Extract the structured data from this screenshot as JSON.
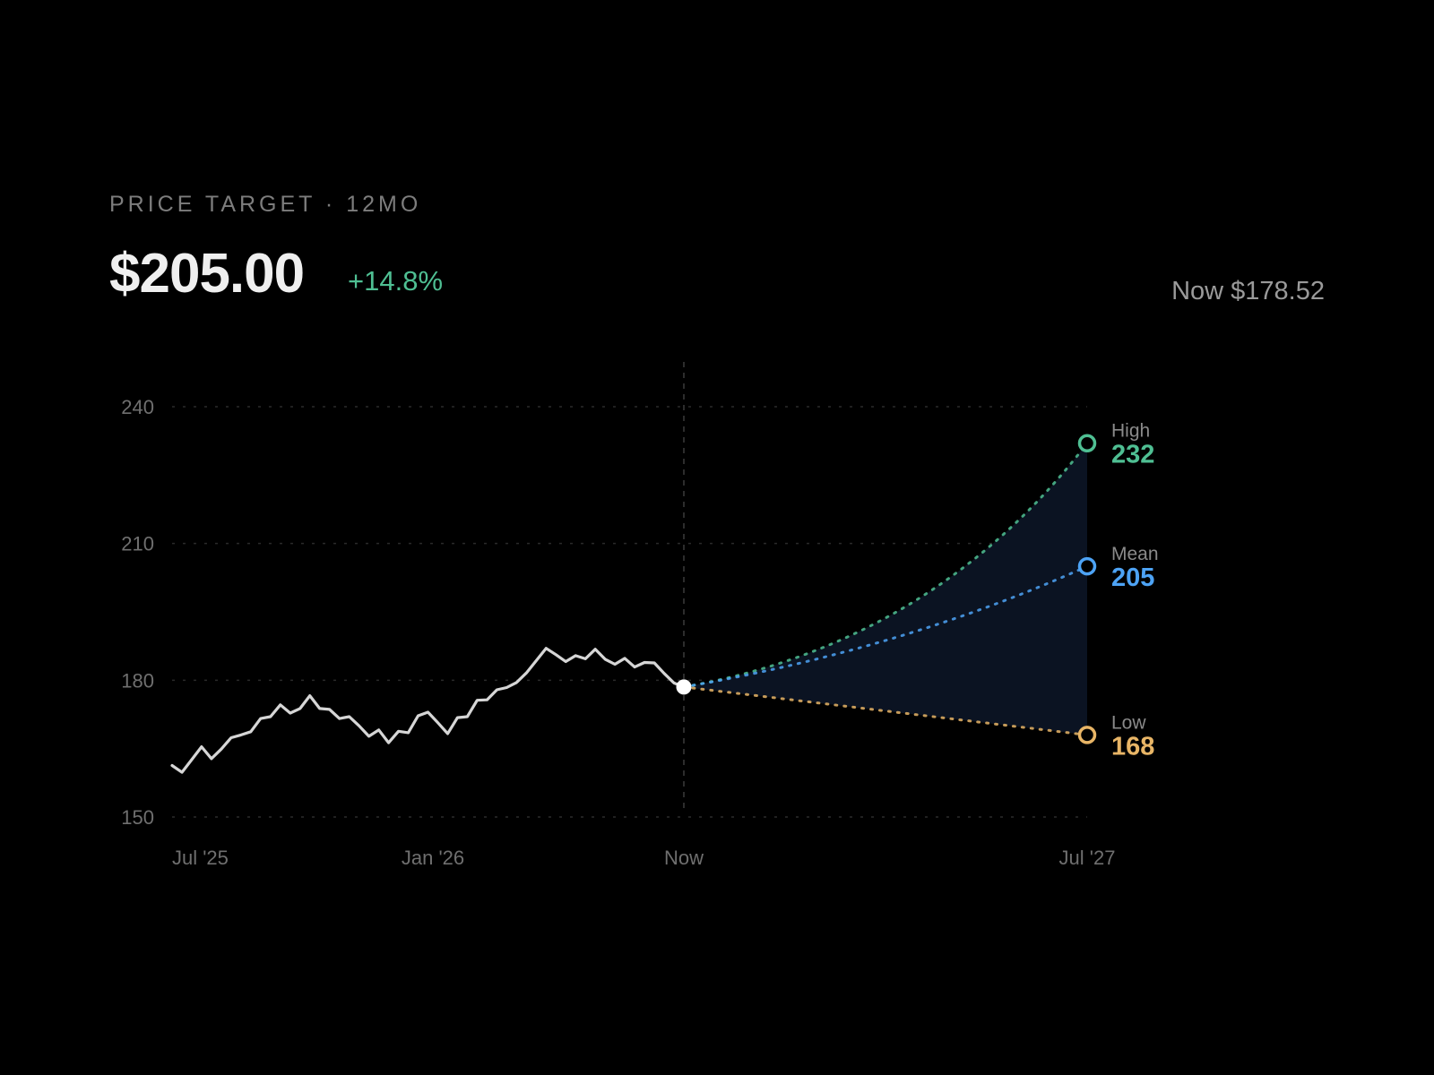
{
  "header": {
    "kicker": "PRICE TARGET · 12MO",
    "price": "$205.00",
    "change": "+14.8%",
    "now_label": "Now $178.52"
  },
  "colors": {
    "background": "#000000",
    "history_line": "#d6d6d6",
    "high": "#4fbf93",
    "mean": "#4da3f5",
    "low": "#e8b566",
    "cone_fill": "#0b1322",
    "grid": "#2a2a2a",
    "axis_text": "#6f6f6f"
  },
  "chart_data": {
    "type": "line",
    "title": "",
    "xlabel": "",
    "ylabel": "",
    "ylim": [
      150,
      240
    ],
    "yticks": [
      240,
      210,
      180,
      150
    ],
    "x_ticks": [
      "Jul '25",
      "Jan '26",
      "Now",
      "Jul '27"
    ],
    "grid": true,
    "now_marker_label": "Now",
    "history": {
      "name": "",
      "start": "Jul '25",
      "end": "Now",
      "values": [
        161.3,
        159.8,
        162.6,
        165.4,
        162.8,
        164.9,
        167.4,
        168.0,
        168.7,
        171.6,
        172.0,
        174.6,
        172.8,
        173.8,
        176.6,
        173.8,
        173.6,
        171.6,
        172.0,
        170.0,
        167.7,
        169.1,
        166.3,
        168.8,
        168.5,
        172.2,
        173.0,
        170.7,
        168.3,
        171.8,
        172.0,
        175.6,
        175.7,
        177.9,
        178.4,
        179.5,
        181.6,
        184.3,
        187.0,
        185.6,
        184.1,
        185.4,
        184.7,
        186.8,
        184.6,
        183.5,
        184.8,
        182.9,
        183.9,
        183.8,
        181.5,
        179.4,
        178.52
      ]
    },
    "current": {
      "label": "Now",
      "value": 178.52
    },
    "targets": [
      {
        "name": "High",
        "value": 232,
        "label": "232"
      },
      {
        "name": "Mean",
        "value": 205,
        "label": "205"
      },
      {
        "name": "Low",
        "value": 168,
        "label": "168"
      }
    ],
    "target_date": "Jul '27"
  }
}
